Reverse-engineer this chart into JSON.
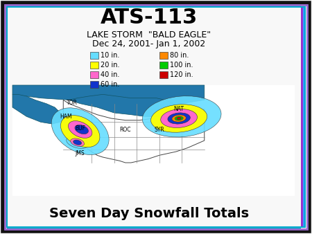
{
  "title": "ATS-113",
  "subtitle1": "LAKE STORM  \"BALD EAGLE\"",
  "subtitle2": "Dec 24, 2001- Jan 1, 2002",
  "bottom_text": "Seven Day Snowfall Totals",
  "bg_color": "#f8f8f8",
  "legend_items_col1": [
    {
      "label": "10 in.",
      "color": "#66ddff"
    },
    {
      "label": "20 in.",
      "color": "#ffff00"
    },
    {
      "label": "40 in.",
      "color": "#ff66cc"
    },
    {
      "label": "60 in.",
      "color": "#1133cc"
    }
  ],
  "legend_items_col2": [
    {
      "label": "80 in.",
      "color": "#ff8800"
    },
    {
      "label": "100 in.",
      "color": "#00cc00"
    },
    {
      "label": "120 in.",
      "color": "#cc0000"
    }
  ],
  "lake_color": "#2277aa",
  "canada_color": "#2277aa",
  "c10": "#66ddff",
  "c20": "#ffff00",
  "c40": "#ff66cc",
  "c60": "#1133cc",
  "c80": "#ff8800",
  "c100": "#00cc00",
  "c120": "#cc0000"
}
